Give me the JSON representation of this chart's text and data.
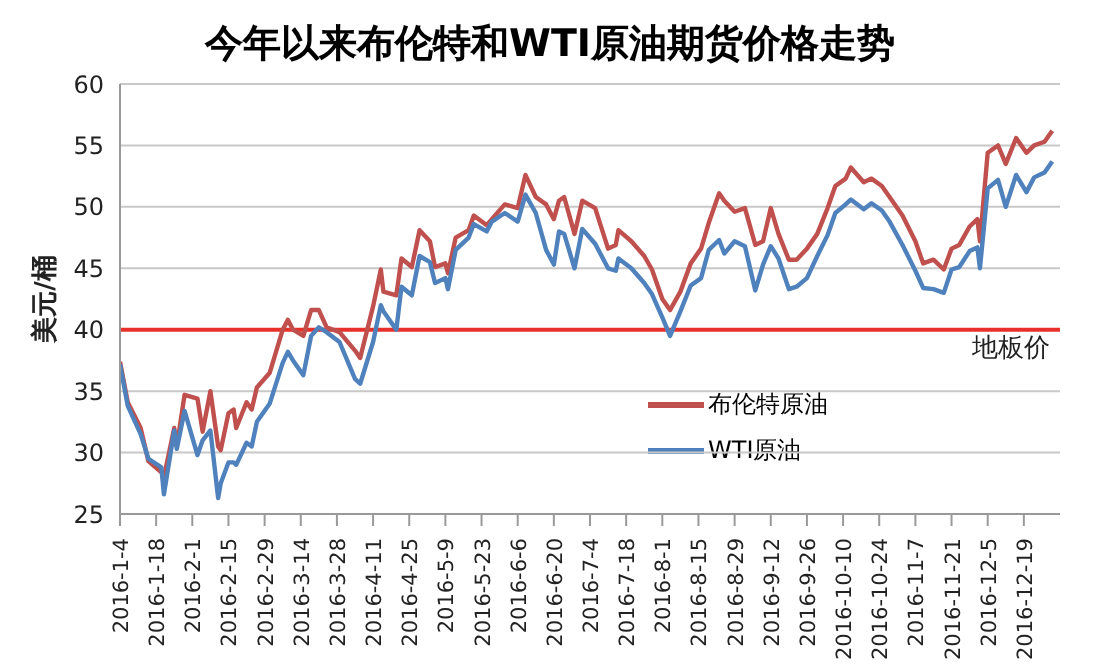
{
  "chart_data": {
    "type": "line",
    "title": "今年以来布伦特和WTI原油期货价格走势",
    "ylabel": "美元/桶",
    "x": [
      "2016-01-04",
      "2016-01-07",
      "2016-01-12",
      "2016-01-15",
      "2016-01-20",
      "2016-01-21",
      "2016-01-25",
      "2016-01-26",
      "2016-01-29",
      "2016-02-03",
      "2016-02-05",
      "2016-02-08",
      "2016-02-11",
      "2016-02-12",
      "2016-02-15",
      "2016-02-17",
      "2016-02-18",
      "2016-02-22",
      "2016-02-24",
      "2016-02-26",
      "2016-03-02",
      "2016-03-07",
      "2016-03-09",
      "2016-03-11",
      "2016-03-15",
      "2016-03-18",
      "2016-03-21",
      "2016-03-24",
      "2016-03-29",
      "2016-04-04",
      "2016-04-06",
      "2016-04-11",
      "2016-04-14",
      "2016-04-15",
      "2016-04-20",
      "2016-04-22",
      "2016-04-26",
      "2016-04-29",
      "2016-05-03",
      "2016-05-05",
      "2016-05-09",
      "2016-05-10",
      "2016-05-13",
      "2016-05-18",
      "2016-05-20",
      "2016-05-25",
      "2016-05-27",
      "2016-06-01",
      "2016-06-06",
      "2016-06-09",
      "2016-06-13",
      "2016-06-17",
      "2016-06-20",
      "2016-06-22",
      "2016-06-24",
      "2016-06-28",
      "2016-07-01",
      "2016-07-06",
      "2016-07-11",
      "2016-07-14",
      "2016-07-15",
      "2016-07-20",
      "2016-07-25",
      "2016-07-28",
      "2016-08-01",
      "2016-08-04",
      "2016-08-08",
      "2016-08-12",
      "2016-08-16",
      "2016-08-19",
      "2016-08-23",
      "2016-08-25",
      "2016-08-29",
      "2016-09-02",
      "2016-09-06",
      "2016-09-09",
      "2016-09-12",
      "2016-09-15",
      "2016-09-19",
      "2016-09-22",
      "2016-09-26",
      "2016-09-30",
      "2016-10-04",
      "2016-10-07",
      "2016-10-11",
      "2016-10-13",
      "2016-10-18",
      "2016-10-21",
      "2016-10-25",
      "2016-10-28",
      "2016-11-02",
      "2016-11-07",
      "2016-11-10",
      "2016-11-14",
      "2016-11-18",
      "2016-11-21",
      "2016-11-24",
      "2016-11-28",
      "2016-12-01",
      "2016-12-02",
      "2016-12-05",
      "2016-12-09",
      "2016-12-12",
      "2016-12-16",
      "2016-12-20",
      "2016-12-23",
      "2016-12-27",
      "2016-12-30"
    ],
    "series": [
      {
        "name": "布伦特原油",
        "color": "#c0504d",
        "values": [
          37.4,
          34.1,
          32,
          29.3,
          28.4,
          28,
          32,
          30.5,
          34.7,
          34.4,
          31.7,
          35,
          30.5,
          30.2,
          33.2,
          33.5,
          32,
          34.1,
          33.5,
          35.3,
          36.5,
          40,
          40.8,
          40,
          39.5,
          41.6,
          41.6,
          40.2,
          39.8,
          38.3,
          37.7,
          41.9,
          44.9,
          43.1,
          42.8,
          45.8,
          45.1,
          48.1,
          47.2,
          45.1,
          45.4,
          44.6,
          47.5,
          48.1,
          49.3,
          48.5,
          49,
          50.2,
          49.9,
          52.6,
          50.8,
          50.2,
          49,
          50.5,
          50.8,
          47.8,
          50.5,
          49.9,
          46.6,
          46.9,
          48.1,
          47.2,
          46,
          44.9,
          42.5,
          41.6,
          43.1,
          45.4,
          46.6,
          48.7,
          51.1,
          50.5,
          49.6,
          49.9,
          46.9,
          47.2,
          49.9,
          47.8,
          45.7,
          45.7,
          46.6,
          47.8,
          49.9,
          51.7,
          52.3,
          53.2,
          52,
          52.3,
          51.7,
          50.8,
          49.3,
          47.2,
          45.4,
          45.7,
          44.9,
          46.6,
          46.9,
          48.4,
          49,
          47.2,
          54.4,
          55,
          53.5,
          55.6,
          54.4,
          55,
          55.3,
          56.2
        ]
      },
      {
        "name": "WTI原油",
        "color": "#4f81bd",
        "values": [
          37.2,
          33.8,
          31.5,
          29.5,
          28.8,
          26.6,
          31.8,
          30.3,
          33.4,
          29.8,
          31,
          31.8,
          26.3,
          27.5,
          29.2,
          29.2,
          29,
          30.8,
          30.5,
          32.5,
          34,
          37.3,
          38.2,
          37.5,
          36.3,
          39.5,
          40.2,
          39.8,
          39,
          36,
          35.6,
          39,
          42,
          41.5,
          40,
          43.5,
          42.8,
          46,
          45.5,
          43.8,
          44.2,
          43.3,
          46.5,
          47.5,
          48.6,
          48,
          48.8,
          49.5,
          48.8,
          51,
          49.5,
          46.5,
          45.3,
          48,
          47.8,
          45,
          48.2,
          47,
          45,
          44.8,
          45.8,
          45,
          43.8,
          42.9,
          41,
          39.5,
          41.5,
          43.6,
          44.2,
          46.5,
          47.3,
          46.2,
          47.2,
          46.8,
          43.2,
          45.3,
          46.8,
          45.8,
          43.3,
          43.5,
          44.2,
          46,
          47.7,
          49.5,
          50.2,
          50.6,
          49.8,
          50.3,
          49.7,
          48.8,
          46.9,
          44.8,
          43.4,
          43.3,
          43,
          44.9,
          45.1,
          46.4,
          46.7,
          45,
          51.5,
          52.2,
          50,
          52.6,
          51.2,
          52.4,
          52.8,
          53.7
        ]
      }
    ],
    "xlim": [
      "2016-01-04",
      "2017-01-02"
    ],
    "xticks": [
      {
        "value": "2016-01-04",
        "label": "2016-1-4"
      },
      {
        "value": "2016-01-18",
        "label": "2016-1-18"
      },
      {
        "value": "2016-02-01",
        "label": "2016-2-1"
      },
      {
        "value": "2016-02-15",
        "label": "2016-2-15"
      },
      {
        "value": "2016-02-29",
        "label": "2016-2-29"
      },
      {
        "value": "2016-03-14",
        "label": "2016-3-14"
      },
      {
        "value": "2016-03-28",
        "label": "2016-3-28"
      },
      {
        "value": "2016-04-11",
        "label": "2016-4-11"
      },
      {
        "value": "2016-04-25",
        "label": "2016-4-25"
      },
      {
        "value": "2016-05-09",
        "label": "2016-5-9"
      },
      {
        "value": "2016-05-23",
        "label": "2016-5-23"
      },
      {
        "value": "2016-06-06",
        "label": "2016-6-6"
      },
      {
        "value": "2016-06-20",
        "label": "2016-6-20"
      },
      {
        "value": "2016-07-04",
        "label": "2016-7-4"
      },
      {
        "value": "2016-07-18",
        "label": "2016-7-18"
      },
      {
        "value": "2016-08-01",
        "label": "2016-8-1"
      },
      {
        "value": "2016-08-15",
        "label": "2016-8-15"
      },
      {
        "value": "2016-08-29",
        "label": "2016-8-29"
      },
      {
        "value": "2016-09-12",
        "label": "2016-9-12"
      },
      {
        "value": "2016-09-26",
        "label": "2016-9-26"
      },
      {
        "value": "2016-10-10",
        "label": "2016-10-10"
      },
      {
        "value": "2016-10-24",
        "label": "2016-10-24"
      },
      {
        "value": "2016-11-07",
        "label": "2016-11-7"
      },
      {
        "value": "2016-11-21",
        "label": "2016-11-21"
      },
      {
        "value": "2016-12-05",
        "label": "2016-12-5"
      },
      {
        "value": "2016-12-19",
        "label": "2016-12-19"
      }
    ],
    "ylim": [
      25,
      60
    ],
    "yticks": [
      25,
      30,
      35,
      40,
      45,
      50,
      55,
      60
    ],
    "ref_lines": [
      {
        "axis": "y",
        "value": 40,
        "label": "地板价",
        "color": "#e8302a"
      }
    ],
    "grid": "y",
    "legend": "bottom right",
    "marker": "none",
    "line_style": "solid"
  }
}
